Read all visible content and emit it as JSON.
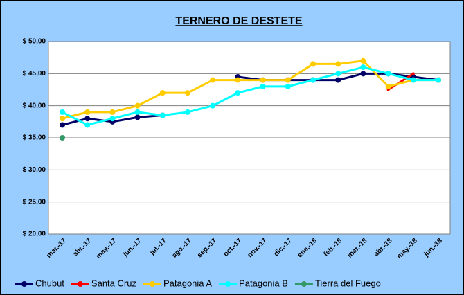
{
  "chart_data": {
    "type": "line",
    "title": "TERNERO DE DESTETE",
    "categories": [
      "mar.-17",
      "abr.-17",
      "may.-17",
      "jun.-17",
      "jul.-17",
      "ago.-17",
      "sep.-17",
      "oct.-17",
      "nov.-17",
      "dic.-17",
      "ene.-18",
      "feb.-18",
      "mar.-18",
      "abr.-18",
      "may.-18",
      "jun.-18"
    ],
    "series": [
      {
        "name": "Chubut",
        "color": "#000066",
        "values": [
          37,
          38,
          37.5,
          38.2,
          38.5,
          null,
          null,
          44.5,
          44,
          44,
          44,
          44,
          45,
          45,
          44.5,
          44
        ]
      },
      {
        "name": "Santa Cruz",
        "color": "#ff0000",
        "values": [
          null,
          null,
          null,
          null,
          null,
          null,
          null,
          null,
          null,
          null,
          null,
          null,
          null,
          42.5,
          45,
          null
        ]
      },
      {
        "name": "Patagonia A",
        "color": "#ffcc00",
        "values": [
          38,
          39,
          39,
          40,
          42,
          42,
          44,
          44,
          44,
          44,
          46.5,
          46.5,
          47,
          43,
          44,
          44
        ]
      },
      {
        "name": "Patagonia B",
        "color": "#00ffff",
        "values": [
          39,
          37,
          38,
          39,
          38.5,
          39,
          40,
          42,
          43,
          43,
          44,
          45,
          46,
          45,
          44,
          44
        ]
      },
      {
        "name": "Tierra del Fuego",
        "color": "#339966",
        "values": [
          35,
          null,
          null,
          null,
          null,
          null,
          null,
          null,
          null,
          null,
          null,
          null,
          null,
          null,
          null,
          null
        ]
      }
    ],
    "ylim": [
      20,
      50
    ],
    "yticks": [
      {
        "value": 20,
        "label": "$ 20,00"
      },
      {
        "value": 25,
        "label": "$ 25,00"
      },
      {
        "value": 30,
        "label": "$ 30,00"
      },
      {
        "value": 35,
        "label": "$ 35,00"
      },
      {
        "value": 40,
        "label": "$ 40,00"
      },
      {
        "value": 45,
        "label": "$ 45,00"
      },
      {
        "value": 50,
        "label": "$ 50,00"
      }
    ],
    "grid": true
  }
}
